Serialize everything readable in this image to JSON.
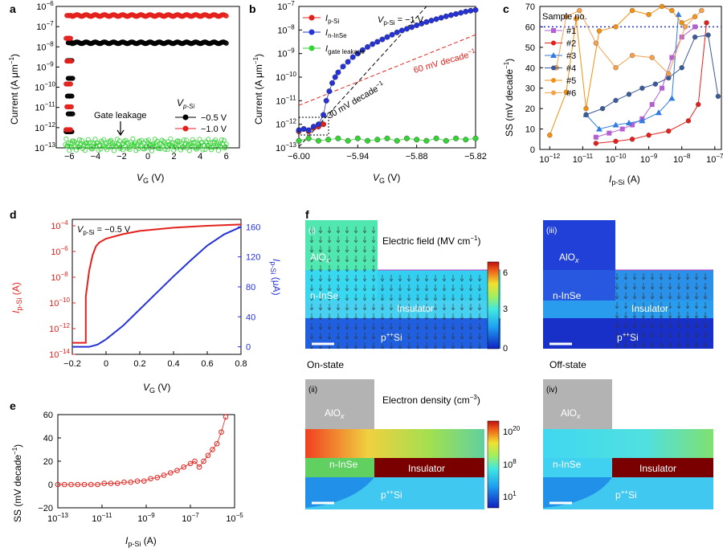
{
  "colors": {
    "red": "#e3211c",
    "black": "#000000",
    "green": "#35d435",
    "blue": "#2432d8",
    "darkred": "#7a0000",
    "grey": "#b3b3b3",
    "purple": "#b45fd2",
    "orange": "#f29012",
    "steel": "#3a5a99",
    "triblue": "#2f7be0"
  },
  "chart_data": [
    {
      "panel": "a",
      "type": "line",
      "xlabel": "V",
      "xlabel_sub": "G",
      "xlabel_unit": " (V)",
      "ylabel": "Current (A μm",
      "ylabel_sup": "−1",
      "ylabel_end": ")",
      "xlim": [
        -7,
        7
      ],
      "ylim_log10": [
        -13,
        -6
      ],
      "xticks": [
        "−6",
        "−4",
        "−2",
        "0",
        "2",
        "4",
        "6"
      ],
      "yticks": [
        "10",
        "10",
        "10",
        "10",
        "10",
        "10",
        "10",
        "10"
      ],
      "ytick_exps": [
        "−13",
        "−12",
        "−11",
        "−10",
        "−9",
        "−8",
        "−7",
        "−6"
      ],
      "legend_title": "V",
      "legend_title_sub": "p-Si",
      "series": [
        {
          "name": "−0.5 V",
          "color": "#000000",
          "off_log10": -12.2,
          "on_log10": -7.8,
          "vth": -5.9
        },
        {
          "name": "−1.0 V",
          "color": "#e3211c",
          "off_log10": -12.1,
          "on_log10": -6.45,
          "vth": -6.0
        },
        {
          "name": "Gate leakage",
          "color": "#35d435",
          "level_log10": -12.85
        }
      ],
      "annotation": "Gate leakage"
    },
    {
      "panel": "b",
      "type": "scatter",
      "xlabel": "V",
      "xlabel_sub": "G",
      "xlabel_unit": " (V)",
      "ylabel": "Current (A μm",
      "ylabel_sup": "−1",
      "ylabel_end": ")",
      "xlim": [
        -6.0,
        -5.82
      ],
      "ylim_log10": [
        -13,
        -7
      ],
      "xticks": [
        "−6.00",
        "−5.94",
        "−5.88",
        "−5.82"
      ],
      "yticks": [
        "10",
        "10",
        "10",
        "10",
        "10",
        "10",
        "10"
      ],
      "ytick_exps": [
        "−13",
        "−12",
        "−11",
        "−10",
        "−9",
        "−8",
        "−7"
      ],
      "series": [
        {
          "name": "I",
          "sub": "p-Si",
          "color": "#e3211c",
          "x": [
            -6.0,
            -5.995,
            -5.99,
            -5.985,
            -5.98,
            -5.975
          ],
          "y_log10": [
            -12.3,
            -12.2,
            -12.3,
            -12.15,
            -12.1,
            -12.0
          ]
        },
        {
          "name": "I",
          "sub": "n-InSe",
          "color": "#2432d8",
          "x": [
            -6.0,
            -5.995,
            -5.99,
            -5.985,
            -5.98,
            -5.975,
            -5.972,
            -5.969,
            -5.966,
            -5.963,
            -5.96,
            -5.955,
            -5.95,
            -5.945,
            -5.94,
            -5.935,
            -5.93,
            -5.925,
            -5.92,
            -5.915,
            -5.91,
            -5.905,
            -5.9,
            -5.895,
            -5.89,
            -5.885,
            -5.88,
            -5.875,
            -5.87,
            -5.865,
            -5.86,
            -5.855,
            -5.85,
            -5.845,
            -5.84,
            -5.835,
            -5.83,
            -5.825,
            -5.82
          ],
          "y_log10": [
            -12.25,
            -12.2,
            -12.25,
            -12.1,
            -12.0,
            -11.6,
            -11.0,
            -10.6,
            -10.25,
            -10.0,
            -9.8,
            -9.55,
            -9.35,
            -9.15,
            -9.0,
            -8.85,
            -8.72,
            -8.6,
            -8.5,
            -8.4,
            -8.3,
            -8.2,
            -8.1,
            -8.02,
            -7.95,
            -7.88,
            -7.8,
            -7.73,
            -7.66,
            -7.6,
            -7.54,
            -7.48,
            -7.42,
            -7.37,
            -7.32,
            -7.27,
            -7.22,
            -7.18,
            -7.15
          ]
        },
        {
          "name": "I",
          "sub": "gate leakage",
          "color": "#35d435",
          "x": [
            -6.0,
            -5.99,
            -5.98,
            -5.97,
            -5.96,
            -5.95,
            -5.94,
            -5.93,
            -5.92,
            -5.91,
            -5.9,
            -5.89,
            -5.88,
            -5.87,
            -5.86,
            -5.85,
            -5.84,
            -5.83,
            -5.82
          ],
          "y_log10": [
            -12.7,
            -12.6,
            -12.7,
            -12.65,
            -12.6,
            -12.7,
            -12.6,
            -12.7,
            -12.65,
            -12.6,
            -12.7,
            -12.6,
            -12.65,
            -12.7,
            -12.6,
            -12.7,
            -12.6,
            -12.65,
            -12.6
          ]
        }
      ],
      "guides": [
        {
          "label": "30 mV decade",
          "label_sup": "−1",
          "color": "#000000",
          "p1": [
            -5.99,
            -12.5
          ],
          "p2": [
            -5.87,
            -7.0
          ]
        },
        {
          "label": "60 mV decade",
          "label_sup": "−1",
          "color": "#e3211c",
          "p1": [
            -6.0,
            -11.2
          ],
          "p2": [
            -5.82,
            -8.2
          ]
        }
      ],
      "header": "V",
      "header_sub": "p-Si",
      "header_val": " = −1 V"
    },
    {
      "panel": "c",
      "type": "line",
      "xlabel": "I",
      "xlabel_sub": "p-Si",
      "xlabel_unit": " (A)",
      "ylabel": "SS (mV decade",
      "ylabel_sup": "−1",
      "ylabel_end": ")",
      "xlim_log10": [
        -12.3,
        -6.8
      ],
      "ylim": [
        0,
        70
      ],
      "xticks": [
        "10",
        "10",
        "10",
        "10",
        "10",
        "10"
      ],
      "xtick_exps": [
        "−12",
        "−11",
        "−10",
        "−9",
        "−8",
        "−7"
      ],
      "yticks": [
        "0",
        "10",
        "20",
        "30",
        "40",
        "50",
        "60",
        "70"
      ],
      "legend_title": "Sample no.",
      "ref_line": 60,
      "series": [
        {
          "name": "#1",
          "color": "#b45fd2",
          "marker": "square",
          "x_log10": [
            -10.6,
            -10.2,
            -9.8,
            -9.5,
            -9.2,
            -8.9,
            -8.6,
            -8.3,
            -8.0,
            -7.6
          ],
          "y": [
            6,
            8,
            10,
            12,
            15,
            22,
            30,
            45,
            55,
            60
          ]
        },
        {
          "name": "#2",
          "color": "#e3211c",
          "marker": "circle",
          "x_log10": [
            -10.6,
            -10.0,
            -9.5,
            -9.0,
            -8.4,
            -7.8,
            -7.5,
            -7.25
          ],
          "y": [
            3,
            4,
            5,
            7,
            9,
            14,
            22,
            62
          ]
        },
        {
          "name": "#3",
          "color": "#2f7be0",
          "marker": "triangle",
          "x_log10": [
            -10.9,
            -10.5,
            -10.0,
            -9.6,
            -9.2,
            -8.7,
            -8.3,
            -8.1
          ],
          "y": [
            17,
            10,
            12,
            13,
            14,
            18,
            25,
            66
          ]
        },
        {
          "name": "#4",
          "color": "#3a5a99",
          "marker": "circle",
          "x_log10": [
            -10.9,
            -10.4,
            -10.0,
            -9.6,
            -9.2,
            -8.8,
            -8.4,
            -8.0,
            -7.6,
            -7.2,
            -6.9
          ],
          "y": [
            17,
            20,
            24,
            27,
            30,
            32,
            35,
            40,
            55,
            56,
            26
          ]
        },
        {
          "name": "#5",
          "color": "#f29012",
          "marker": "circle",
          "x_log10": [
            -12.0,
            -11.5,
            -11.2,
            -10.9,
            -10.5,
            -10.0,
            -9.5,
            -9.0,
            -8.6,
            -8.3,
            -8.0,
            -7.6
          ],
          "y": [
            7,
            28,
            64,
            20,
            58,
            60,
            68,
            66,
            72,
            68,
            62,
            65
          ]
        },
        {
          "name": "#6",
          "color": "#f5a04a",
          "marker": "circle",
          "x_log10": [
            -11.8,
            -11.5,
            -11.1,
            -10.6,
            -10.0,
            -9.5,
            -8.9,
            -8.4,
            -7.9,
            -7.4
          ],
          "y": [
            40,
            65,
            68,
            52,
            40,
            46,
            45,
            37,
            60,
            68
          ]
        }
      ]
    },
    {
      "panel": "d",
      "type": "line",
      "xlabel": "V",
      "xlabel_sub": "G",
      "xlabel_unit": " (V)",
      "ylabel_left": "I",
      "ylabel_left_sub": "p-Si",
      "ylabel_left_unit": " (A)",
      "ylabel_right": "I",
      "ylabel_right_sub": "p-Si",
      "ylabel_right_unit": " (μA)",
      "xlim": [
        -0.2,
        0.8
      ],
      "ylim_left_log10": [
        -14,
        -3.5
      ],
      "ylim_right": [
        -10,
        170
      ],
      "xticks": [
        "−0.2",
        "0",
        "0.2",
        "0.4",
        "0.6",
        "0.8"
      ],
      "yticks_left": [
        "10",
        "10",
        "10",
        "10",
        "10",
        "10"
      ],
      "ytick_left_exps": [
        "−14",
        "−12",
        "−10",
        "−8",
        "−6",
        "−4"
      ],
      "yticks_right": [
        "0",
        "40",
        "80",
        "120",
        "160"
      ],
      "header": "V",
      "header_sub": "p-Si",
      "header_val": " = −0.5 V",
      "series": [
        {
          "name": "log current",
          "color": "#e3211c",
          "x": [
            -0.2,
            -0.12,
            -0.12,
            -0.1,
            -0.08,
            -0.06,
            -0.04,
            0.0,
            0.1,
            0.2,
            0.4,
            0.6,
            0.8
          ],
          "y_log10": [
            -13.1,
            -13.1,
            -9.5,
            -7.5,
            -6.3,
            -5.6,
            -5.3,
            -5.0,
            -4.65,
            -4.4,
            -4.15,
            -4.0,
            -3.9
          ]
        },
        {
          "name": "linear current",
          "color": "#2432d8",
          "x": [
            -0.2,
            -0.1,
            -0.05,
            0.0,
            0.1,
            0.2,
            0.3,
            0.4,
            0.5,
            0.6,
            0.7,
            0.8
          ],
          "y": [
            0,
            0,
            3,
            10,
            28,
            50,
            72,
            94,
            115,
            135,
            150,
            160
          ]
        }
      ]
    },
    {
      "panel": "e",
      "type": "scatter",
      "xlabel": "I",
      "xlabel_sub": "p-Si",
      "xlabel_unit": " (A)",
      "ylabel": "SS (mV decade",
      "ylabel_sup": "−1",
      "ylabel_end": ")",
      "xlim_log10": [
        -13,
        -5
      ],
      "ylim": [
        -20,
        60
      ],
      "xticks": [
        "10",
        "10",
        "10",
        "10",
        "10"
      ],
      "xtick_exps": [
        "−13",
        "−11",
        "−9",
        "−7",
        "−5"
      ],
      "yticks": [
        "−20",
        "0",
        "20",
        "40",
        "60"
      ],
      "series": [
        {
          "name": "SS",
          "color": "#e3211c",
          "x_log10": [
            -13,
            -12.7,
            -12.4,
            -12.1,
            -11.8,
            -11.5,
            -11.2,
            -10.9,
            -10.6,
            -10.3,
            -10.0,
            -9.7,
            -9.4,
            -9.1,
            -8.8,
            -8.5,
            -8.2,
            -7.9,
            -7.6,
            -7.3,
            -7.0,
            -6.8,
            -6.6,
            -6.4,
            -6.2,
            -6.0,
            -5.8,
            -5.6,
            -5.4
          ],
          "y": [
            0,
            0,
            0,
            0,
            0,
            0,
            0,
            1,
            1,
            1,
            2,
            2,
            3,
            3,
            5,
            6,
            8,
            10,
            12,
            15,
            18,
            20,
            15,
            20,
            25,
            30,
            35,
            45,
            58
          ]
        }
      ]
    }
  ],
  "panel_f": {
    "subpanels": [
      "(i)",
      "(iii)",
      "(ii)",
      "(iv)"
    ],
    "field_title": "Electric field (MV cm",
    "field_title_sup": "−1",
    "field_title_end": ")",
    "density_title": "Electron density (cm",
    "density_title_sup": "−3",
    "density_title_end": ")",
    "field_scale": [
      "6",
      "3",
      "0"
    ],
    "density_scale": [
      "10",
      "10",
      "10"
    ],
    "density_scale_exps": [
      "20",
      "8",
      "1"
    ],
    "on_label": "On-state",
    "off_label": "Off-state",
    "labels": {
      "aloxa": "AlO",
      "aloxb": "x",
      "insen": "n-InSe",
      "insul": "Insulator",
      "psi": "p",
      "psi_sup": "++",
      "psi_end": "Si"
    }
  },
  "panel_labels": [
    "a",
    "b",
    "c",
    "d",
    "e",
    "f"
  ]
}
